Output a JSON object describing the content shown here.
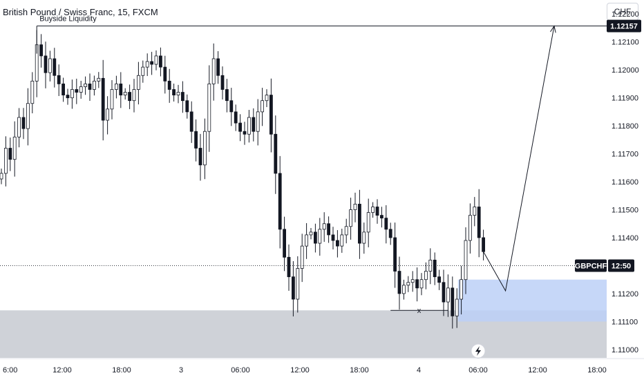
{
  "header": {
    "symbol_title": "British Pound / Swiss Franc, 15, FXCM",
    "currency": "CHF"
  },
  "colors": {
    "candle": "#131722",
    "supply_zone": "#bcd0f7",
    "demand_zone": "#cfd2d8",
    "zone_overlap": "#9fb3e6",
    "price_tag": "#131722"
  },
  "icons": {
    "replay": "lightning-icon"
  },
  "chart_data": {
    "type": "candlestick",
    "instrument": "GBPCHF",
    "timeframe": "15",
    "y_axis": {
      "range": [
        1.1097,
        1.1225
      ],
      "ticks": [
        "1.12200",
        "1.12100",
        "1.12000",
        "1.11900",
        "1.11800",
        "1.11700",
        "1.11600",
        "1.11500",
        "1.11400",
        "1.11200",
        "1.11100",
        "1.11000"
      ]
    },
    "x_axis": {
      "ticks": [
        "6:00",
        "12:00",
        "18:00",
        "3",
        "06:00",
        "12:00",
        "18:00",
        "4",
        "06:00",
        "12:00",
        "18:00"
      ]
    },
    "grid": false,
    "series": [
      {
        "kind": "close-path",
        "values": [
          1.1163,
          1.1172,
          1.1168,
          1.1176,
          1.1183,
          1.1179,
          1.1188,
          1.1196,
          1.1209,
          1.1205,
          1.1199,
          1.1204,
          1.1198,
          1.1195,
          1.1191,
          1.119,
          1.1193,
          1.1192,
          1.1194,
          1.1195,
          1.1193,
          1.1196,
          1.1197,
          1.1182,
          1.1186,
          1.1193,
          1.1195,
          1.1191,
          1.1192,
          1.1189,
          1.1193,
          1.1198,
          1.1201,
          1.1203,
          1.1202,
          1.1205,
          1.1201,
          1.1196,
          1.1193,
          1.1191,
          1.1192,
          1.1189,
          1.1185,
          1.1178,
          1.1172,
          1.1166,
          1.1178,
          1.1195,
          1.1204,
          1.1198,
          1.1193,
          1.1189,
          1.1185,
          1.1181,
          1.1178,
          1.1177,
          1.1183,
          1.1178,
          1.1185,
          1.1189,
          1.1191,
          1.1177,
          1.1163,
          1.1143,
          1.1133,
          1.1126,
          1.1118,
          1.1129,
          1.1137,
          1.1141,
          1.1142,
          1.1138,
          1.1143,
          1.1145,
          1.1141,
          1.1139,
          1.1137,
          1.1141,
          1.1144,
          1.115,
          1.1152,
          1.1138,
          1.1142,
          1.1149,
          1.1151,
          1.1148,
          1.1147,
          1.1143,
          1.114,
          1.1128,
          1.112,
          1.1123,
          1.1124,
          1.1125,
          1.1122,
          1.1125,
          1.1128,
          1.1132,
          1.1126,
          1.1124,
          1.1117,
          1.1122,
          1.1112,
          1.1118,
          1.1125,
          1.1139,
          1.1148,
          1.1151,
          1.114,
          1.1135
        ]
      }
    ],
    "annotations": {
      "buyside_liquidity": {
        "label": "Buyside Liquidity",
        "price": 1.12157,
        "x_start_index": 8
      },
      "price_label": {
        "text": "1.12157",
        "price": 1.12157
      },
      "current_price_line": {
        "price": 1.113
      },
      "symbol_tag": {
        "text": "GBPCHF",
        "time": "12:50"
      },
      "supply_zone": {
        "y_top": 1.1125,
        "y_bottom": 1.111
      },
      "demand_zone": {
        "y_top": 1.1114,
        "y_bottom": 1.1097
      },
      "sellside_marker": {
        "label": "x",
        "price": 1.1114
      },
      "projection_path": [
        {
          "index": 109,
          "price": 1.1135
        },
        {
          "index": 114,
          "price": 1.1121
        },
        {
          "index": 125,
          "price": 1.12157
        }
      ]
    }
  }
}
